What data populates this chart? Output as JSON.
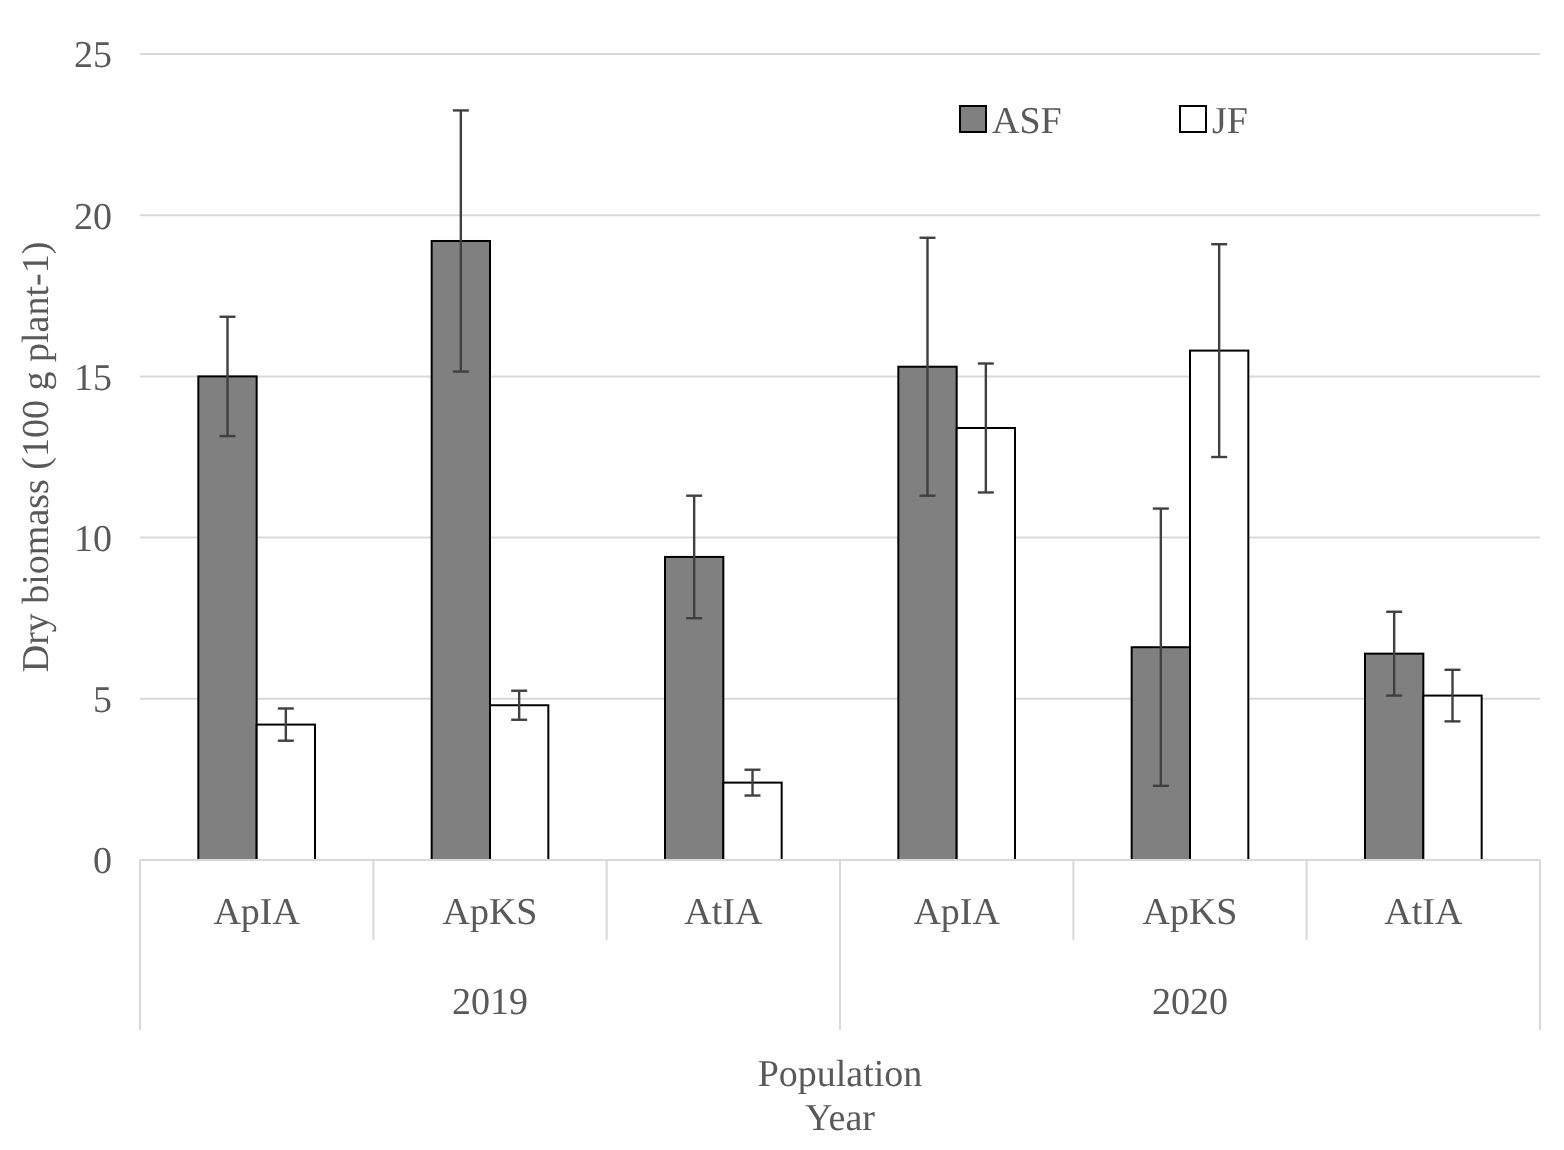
{
  "chart_data": {
    "type": "bar",
    "ylabel": "Dry biomass (100 g plant-1)",
    "xlabel": "Population\nYear",
    "categories": [
      "ApIA",
      "ApKS",
      "AtIA",
      "ApIA",
      "ApKS",
      "AtIA"
    ],
    "annotations": [
      "2019",
      "2020"
    ],
    "series": [
      {
        "name": "ASF",
        "color": "#808080",
        "values": [
          15.0,
          19.2,
          9.4,
          15.3,
          6.6,
          6.4
        ],
        "errors": [
          1.85,
          4.05,
          1.9,
          4.0,
          4.3,
          1.3
        ]
      },
      {
        "name": "JF",
        "color": "#ffffff",
        "values": [
          4.2,
          4.8,
          2.4,
          13.4,
          15.8,
          5.1
        ],
        "errors": [
          0.5,
          0.45,
          0.4,
          2.0,
          3.3,
          0.8
        ]
      }
    ],
    "ylim": [
      0,
      25
    ],
    "yticks": [
      0,
      5,
      10,
      15,
      20,
      25
    ],
    "grid": "y",
    "legend": "top right"
  }
}
